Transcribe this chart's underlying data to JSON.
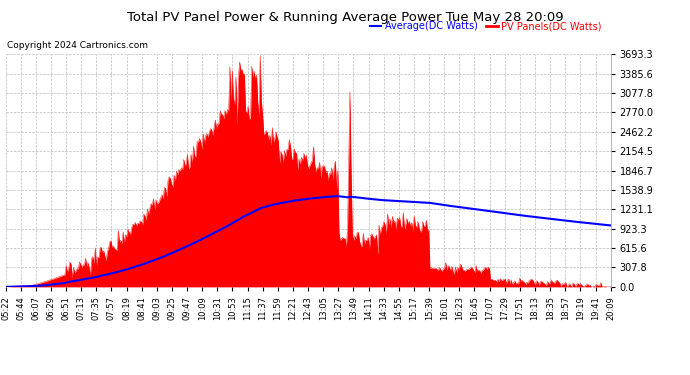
{
  "title": "Total PV Panel Power & Running Average Power Tue May 28 20:09",
  "copyright": "Copyright 2024 Cartronics.com",
  "legend_avg": "Average(DC Watts)",
  "legend_pv": "PV Panels(DC Watts)",
  "yticks": [
    0.0,
    307.8,
    615.6,
    923.3,
    1231.1,
    1538.9,
    1846.7,
    2154.5,
    2462.2,
    2770.0,
    3077.8,
    3385.6,
    3693.3
  ],
  "ymax": 3693.3,
  "bg_color": "#ffffff",
  "grid_color": "#bbbbbb",
  "pv_color": "red",
  "avg_color": "blue",
  "title_color": "#000000",
  "copyright_color": "#000000",
  "avg_legend_color": "blue",
  "pv_legend_color": "red",
  "x_tick_labels": [
    "05:22",
    "05:44",
    "06:07",
    "06:29",
    "06:51",
    "07:13",
    "07:35",
    "07:57",
    "08:19",
    "08:41",
    "09:03",
    "09:25",
    "09:47",
    "10:09",
    "10:31",
    "10:53",
    "11:15",
    "11:37",
    "11:59",
    "12:21",
    "12:43",
    "13:05",
    "13:27",
    "13:49",
    "14:11",
    "14:33",
    "14:55",
    "15:17",
    "15:39",
    "16:01",
    "16:23",
    "16:45",
    "17:07",
    "17:29",
    "17:51",
    "18:13",
    "18:35",
    "18:57",
    "19:19",
    "19:41",
    "20:09"
  ],
  "n_ticks": 41,
  "n_points": 500
}
